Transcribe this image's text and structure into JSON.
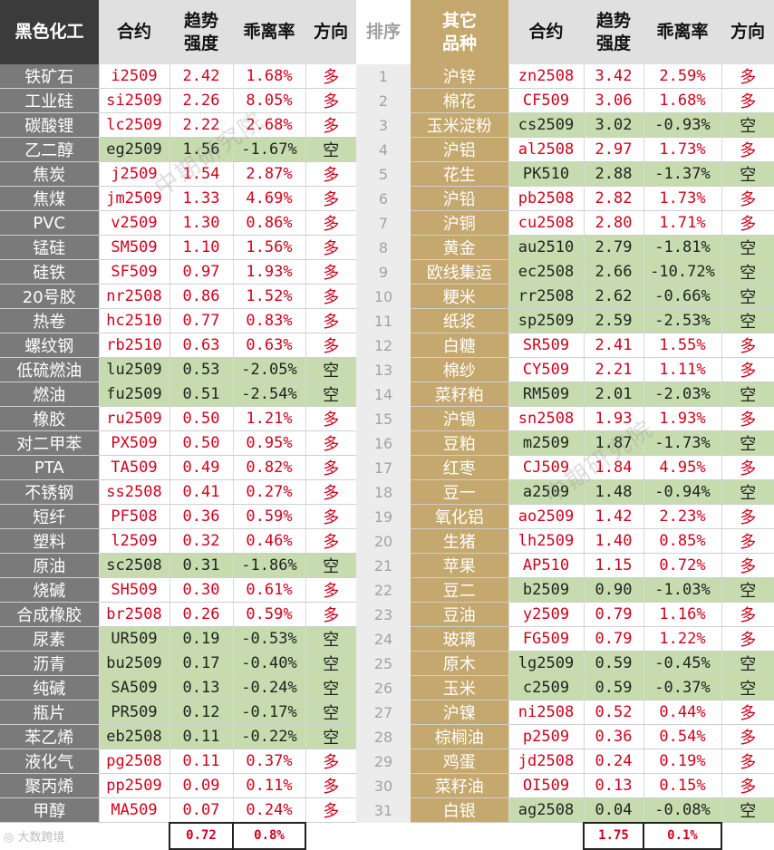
{
  "header": {
    "left_category": "黑色化工",
    "contract": "合约",
    "trend": "趋势\n强度",
    "deviation": "乖离率",
    "direction": "方向",
    "rank": "排序",
    "right_category": "其它\n品种"
  },
  "left_rows": [
    {
      "name": "铁矿石",
      "contract": "i2509",
      "strength": "2.42",
      "deviation": "1.68%",
      "direction": "多"
    },
    {
      "name": "工业硅",
      "contract": "si2509",
      "strength": "2.26",
      "deviation": "8.05%",
      "direction": "多"
    },
    {
      "name": "碳酸锂",
      "contract": "lc2509",
      "strength": "2.22",
      "deviation": "2.68%",
      "direction": "多"
    },
    {
      "name": "乙二醇",
      "contract": "eg2509",
      "strength": "1.56",
      "deviation": "-1.67%",
      "direction": "空"
    },
    {
      "name": "焦炭",
      "contract": "j2509",
      "strength": "1.54",
      "deviation": "2.87%",
      "direction": "多"
    },
    {
      "name": "焦煤",
      "contract": "jm2509",
      "strength": "1.33",
      "deviation": "4.69%",
      "direction": "多"
    },
    {
      "name": "PVC",
      "contract": "v2509",
      "strength": "1.30",
      "deviation": "0.86%",
      "direction": "多"
    },
    {
      "name": "锰硅",
      "contract": "SM509",
      "strength": "1.10",
      "deviation": "1.56%",
      "direction": "多"
    },
    {
      "name": "硅铁",
      "contract": "SF509",
      "strength": "0.97",
      "deviation": "1.93%",
      "direction": "多"
    },
    {
      "name": "20号胶",
      "contract": "nr2508",
      "strength": "0.86",
      "deviation": "1.52%",
      "direction": "多"
    },
    {
      "name": "热卷",
      "contract": "hc2510",
      "strength": "0.77",
      "deviation": "0.83%",
      "direction": "多"
    },
    {
      "name": "螺纹钢",
      "contract": "rb2510",
      "strength": "0.63",
      "deviation": "0.63%",
      "direction": "多"
    },
    {
      "name": "低硫燃油",
      "contract": "lu2509",
      "strength": "0.53",
      "deviation": "-2.05%",
      "direction": "空"
    },
    {
      "name": "燃油",
      "contract": "fu2509",
      "strength": "0.51",
      "deviation": "-2.54%",
      "direction": "空"
    },
    {
      "name": "橡胶",
      "contract": "ru2509",
      "strength": "0.50",
      "deviation": "1.21%",
      "direction": "多"
    },
    {
      "name": "对二甲苯",
      "contract": "PX509",
      "strength": "0.50",
      "deviation": "0.95%",
      "direction": "多"
    },
    {
      "name": "PTA",
      "contract": "TA509",
      "strength": "0.49",
      "deviation": "0.82%",
      "direction": "多"
    },
    {
      "name": "不锈钢",
      "contract": "ss2508",
      "strength": "0.41",
      "deviation": "0.27%",
      "direction": "多"
    },
    {
      "name": "短纤",
      "contract": "PF508",
      "strength": "0.36",
      "deviation": "0.59%",
      "direction": "多"
    },
    {
      "name": "塑料",
      "contract": "l2509",
      "strength": "0.32",
      "deviation": "0.46%",
      "direction": "多"
    },
    {
      "name": "原油",
      "contract": "sc2508",
      "strength": "0.31",
      "deviation": "-1.86%",
      "direction": "空"
    },
    {
      "name": "烧碱",
      "contract": "SH509",
      "strength": "0.30",
      "deviation": "0.61%",
      "direction": "多"
    },
    {
      "name": "合成橡胶",
      "contract": "br2508",
      "strength": "0.26",
      "deviation": "0.59%",
      "direction": "多"
    },
    {
      "name": "尿素",
      "contract": "UR509",
      "strength": "0.19",
      "deviation": "-0.53%",
      "direction": "空"
    },
    {
      "name": "沥青",
      "contract": "bu2509",
      "strength": "0.17",
      "deviation": "-0.40%",
      "direction": "空"
    },
    {
      "name": "纯碱",
      "contract": "SA509",
      "strength": "0.13",
      "deviation": "-0.24%",
      "direction": "空"
    },
    {
      "name": "瓶片",
      "contract": "PR509",
      "strength": "0.12",
      "deviation": "-0.17%",
      "direction": "空"
    },
    {
      "name": "苯乙烯",
      "contract": "eb2508",
      "strength": "0.11",
      "deviation": "-0.22%",
      "direction": "空"
    },
    {
      "name": "液化气",
      "contract": "pg2508",
      "strength": "0.11",
      "deviation": "0.37%",
      "direction": "多"
    },
    {
      "name": "聚丙烯",
      "contract": "pp2509",
      "strength": "0.09",
      "deviation": "0.11%",
      "direction": "多"
    },
    {
      "name": "甲醇",
      "contract": "MA509",
      "strength": "0.07",
      "deviation": "0.24%",
      "direction": "多"
    }
  ],
  "right_rows": [
    {
      "name": "沪锌",
      "contract": "zn2508",
      "strength": "3.42",
      "deviation": "2.59%",
      "direction": "多"
    },
    {
      "name": "棉花",
      "contract": "CF509",
      "strength": "3.06",
      "deviation": "1.68%",
      "direction": "多"
    },
    {
      "name": "玉米淀粉",
      "contract": "cs2509",
      "strength": "3.02",
      "deviation": "-0.93%",
      "direction": "空"
    },
    {
      "name": "沪铝",
      "contract": "al2508",
      "strength": "2.97",
      "deviation": "1.73%",
      "direction": "多"
    },
    {
      "name": "花生",
      "contract": "PK510",
      "strength": "2.88",
      "deviation": "-1.37%",
      "direction": "空"
    },
    {
      "name": "沪铅",
      "contract": "pb2508",
      "strength": "2.82",
      "deviation": "1.73%",
      "direction": "多"
    },
    {
      "name": "沪铜",
      "contract": "cu2508",
      "strength": "2.80",
      "deviation": "1.71%",
      "direction": "多"
    },
    {
      "name": "黄金",
      "contract": "au2510",
      "strength": "2.79",
      "deviation": "-1.81%",
      "direction": "空"
    },
    {
      "name": "欧线集运",
      "contract": "ec2508",
      "strength": "2.66",
      "deviation": "-10.72%",
      "direction": "空"
    },
    {
      "name": "粳米",
      "contract": "rr2508",
      "strength": "2.62",
      "deviation": "-0.66%",
      "direction": "空"
    },
    {
      "name": "纸浆",
      "contract": "sp2509",
      "strength": "2.59",
      "deviation": "-2.53%",
      "direction": "空"
    },
    {
      "name": "白糖",
      "contract": "SR509",
      "strength": "2.41",
      "deviation": "1.55%",
      "direction": "多"
    },
    {
      "name": "棉纱",
      "contract": "CY509",
      "strength": "2.21",
      "deviation": "1.11%",
      "direction": "多"
    },
    {
      "name": "菜籽粕",
      "contract": "RM509",
      "strength": "2.01",
      "deviation": "-2.03%",
      "direction": "空"
    },
    {
      "name": "沪锡",
      "contract": "sn2508",
      "strength": "1.93",
      "deviation": "1.93%",
      "direction": "多"
    },
    {
      "name": "豆粕",
      "contract": "m2509",
      "strength": "1.87",
      "deviation": "-1.73%",
      "direction": "空"
    },
    {
      "name": "红枣",
      "contract": "CJ509",
      "strength": "1.84",
      "deviation": "4.95%",
      "direction": "多"
    },
    {
      "name": "豆一",
      "contract": "a2509",
      "strength": "1.48",
      "deviation": "-0.94%",
      "direction": "空"
    },
    {
      "name": "氧化铝",
      "contract": "ao2509",
      "strength": "1.42",
      "deviation": "2.23%",
      "direction": "多"
    },
    {
      "name": "生猪",
      "contract": "lh2509",
      "strength": "1.40",
      "deviation": "0.85%",
      "direction": "多"
    },
    {
      "name": "苹果",
      "contract": "AP510",
      "strength": "1.15",
      "deviation": "0.72%",
      "direction": "多"
    },
    {
      "name": "豆二",
      "contract": "b2509",
      "strength": "0.90",
      "deviation": "-1.03%",
      "direction": "空"
    },
    {
      "name": "豆油",
      "contract": "y2509",
      "strength": "0.79",
      "deviation": "1.16%",
      "direction": "多"
    },
    {
      "name": "玻璃",
      "contract": "FG509",
      "strength": "0.79",
      "deviation": "1.22%",
      "direction": "多"
    },
    {
      "name": "原木",
      "contract": "lg2509",
      "strength": "0.59",
      "deviation": "-0.45%",
      "direction": "空"
    },
    {
      "name": "玉米",
      "contract": "c2509",
      "strength": "0.59",
      "deviation": "-0.37%",
      "direction": "空"
    },
    {
      "name": "沪镍",
      "contract": "ni2508",
      "strength": "0.52",
      "deviation": "0.44%",
      "direction": "多"
    },
    {
      "name": "棕榈油",
      "contract": "p2509",
      "strength": "0.36",
      "deviation": "0.54%",
      "direction": "多"
    },
    {
      "name": "鸡蛋",
      "contract": "jd2508",
      "strength": "0.24",
      "deviation": "0.19%",
      "direction": "多"
    },
    {
      "name": "菜籽油",
      "contract": "OI509",
      "strength": "0.13",
      "deviation": "0.15%",
      "direction": "多"
    },
    {
      "name": "白银",
      "contract": "ag2508",
      "strength": "0.04",
      "deviation": "-0.08%",
      "direction": "空"
    }
  ],
  "footer": {
    "left_avg_strength": "0.72",
    "left_avg_deviation": "0.8%",
    "right_avg_strength": "1.75",
    "right_avg_deviation": "0.1%",
    "logo_text": "大数跨境"
  },
  "watermark": "中期研究院",
  "colors": {
    "black_category_bg": "#3b3b3b",
    "black_name_bg": "#7a7a7a",
    "other_category_bg": "#c4a86d",
    "short_row_bg": "#c6dcae",
    "long_text": "#d0021b",
    "rank_bg": "#ececec"
  },
  "direction_short": "空"
}
